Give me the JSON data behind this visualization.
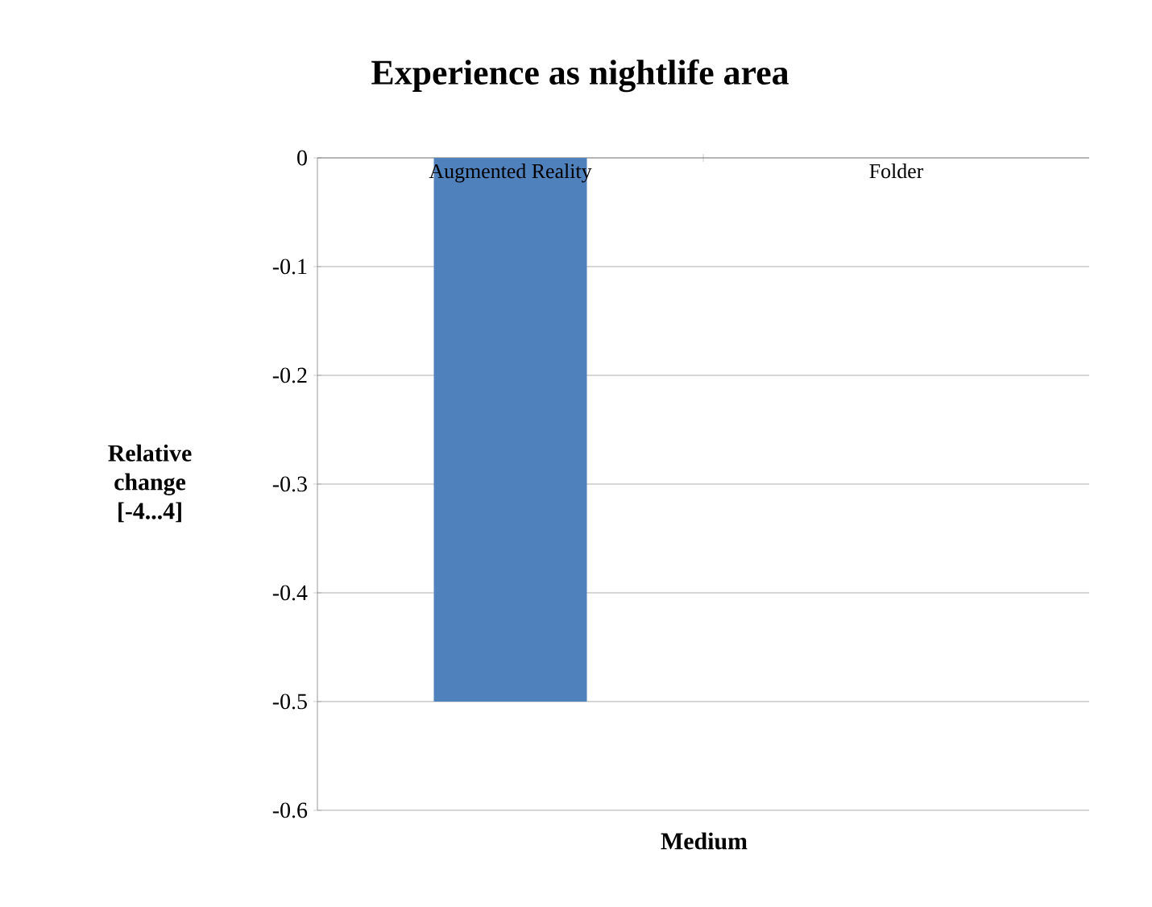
{
  "chart_data": {
    "type": "bar",
    "title": "Experience as nightlife area",
    "xlabel": "Medium",
    "ylabel": "Relative change [-4...4]",
    "categories": [
      "Augmented Reality",
      "Folder"
    ],
    "values": [
      -0.5,
      0
    ],
    "color": "#4f81bd",
    "ylim": [
      -0.6,
      0
    ],
    "yticks": [
      -0.6,
      -0.5,
      -0.4,
      -0.3,
      -0.2,
      -0.1,
      0
    ],
    "grid": "y"
  }
}
